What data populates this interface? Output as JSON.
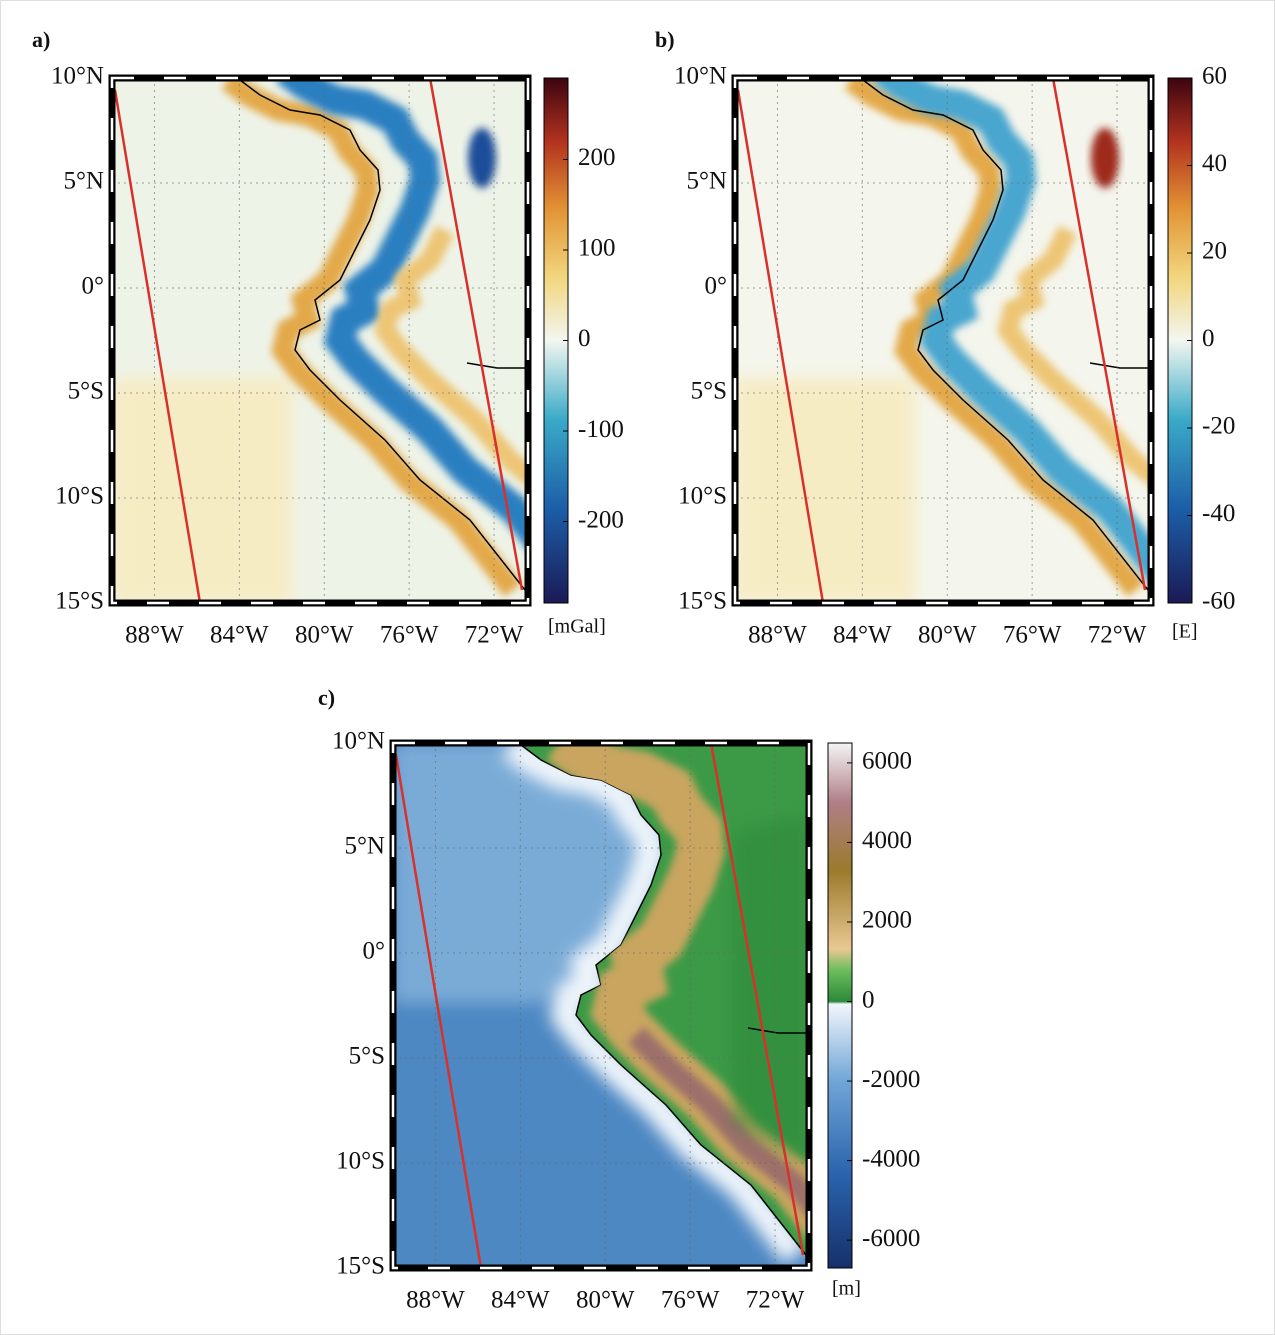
{
  "panels": [
    {
      "label": "a)",
      "map": {
        "xlim": [
          -90,
          -70.4
        ],
        "ylim": [
          -15,
          10
        ],
        "xticks": [
          {
            "value": -88,
            "label": "88°W"
          },
          {
            "value": -84,
            "label": "84°W"
          },
          {
            "value": -80,
            "label": "80°W"
          },
          {
            "value": -76,
            "label": "76°W"
          },
          {
            "value": -72,
            "label": "72°W"
          }
        ],
        "yticks": [
          {
            "value": 10,
            "label": "10°N"
          },
          {
            "value": 5,
            "label": "5°N"
          },
          {
            "value": 0,
            "label": "0°"
          },
          {
            "value": -5,
            "label": "5°S"
          },
          {
            "value": -10,
            "label": "10°S"
          },
          {
            "value": -15,
            "label": "15°S"
          }
        ]
      },
      "colorbar": {
        "clim": [
          -290,
          290
        ],
        "ticks": [
          -200,
          -100,
          0,
          100,
          200
        ],
        "unit": "[mGal]"
      }
    },
    {
      "label": "b)",
      "map": {
        "xlim": [
          -90,
          -70.4
        ],
        "ylim": [
          -15,
          10
        ],
        "xticks": [
          {
            "value": -88,
            "label": "88°W"
          },
          {
            "value": -84,
            "label": "84°W"
          },
          {
            "value": -80,
            "label": "80°W"
          },
          {
            "value": -76,
            "label": "76°W"
          },
          {
            "value": -72,
            "label": "72°W"
          }
        ],
        "yticks": [
          {
            "value": 10,
            "label": "10°N"
          },
          {
            "value": 5,
            "label": "5°N"
          },
          {
            "value": 0,
            "label": "0°"
          },
          {
            "value": -5,
            "label": "5°S"
          },
          {
            "value": -10,
            "label": "10°S"
          },
          {
            "value": -15,
            "label": "15°S"
          }
        ]
      },
      "colorbar": {
        "clim": [
          -60,
          60
        ],
        "ticks": [
          -60,
          -40,
          -20,
          0,
          20,
          40,
          60
        ],
        "unit": "[E]"
      }
    },
    {
      "label": "c)",
      "map": {
        "xlim": [
          -90,
          -70.4
        ],
        "ylim": [
          -15,
          10
        ],
        "xticks": [
          {
            "value": -88,
            "label": "88°W"
          },
          {
            "value": -84,
            "label": "84°W"
          },
          {
            "value": -80,
            "label": "80°W"
          },
          {
            "value": -76,
            "label": "76°W"
          },
          {
            "value": -72,
            "label": "72°W"
          }
        ],
        "yticks": [
          {
            "value": 10,
            "label": "10°N"
          },
          {
            "value": 5,
            "label": "5°N"
          },
          {
            "value": 0,
            "label": "0°"
          },
          {
            "value": -5,
            "label": "5°S"
          },
          {
            "value": -10,
            "label": "10°S"
          },
          {
            "value": -15,
            "label": "15°S"
          }
        ]
      },
      "colorbar": {
        "clim": [
          -6700,
          6500
        ],
        "ticks": [
          -6000,
          -4000,
          -2000,
          0,
          2000,
          4000,
          6000
        ],
        "unit": "[m]"
      }
    }
  ]
}
